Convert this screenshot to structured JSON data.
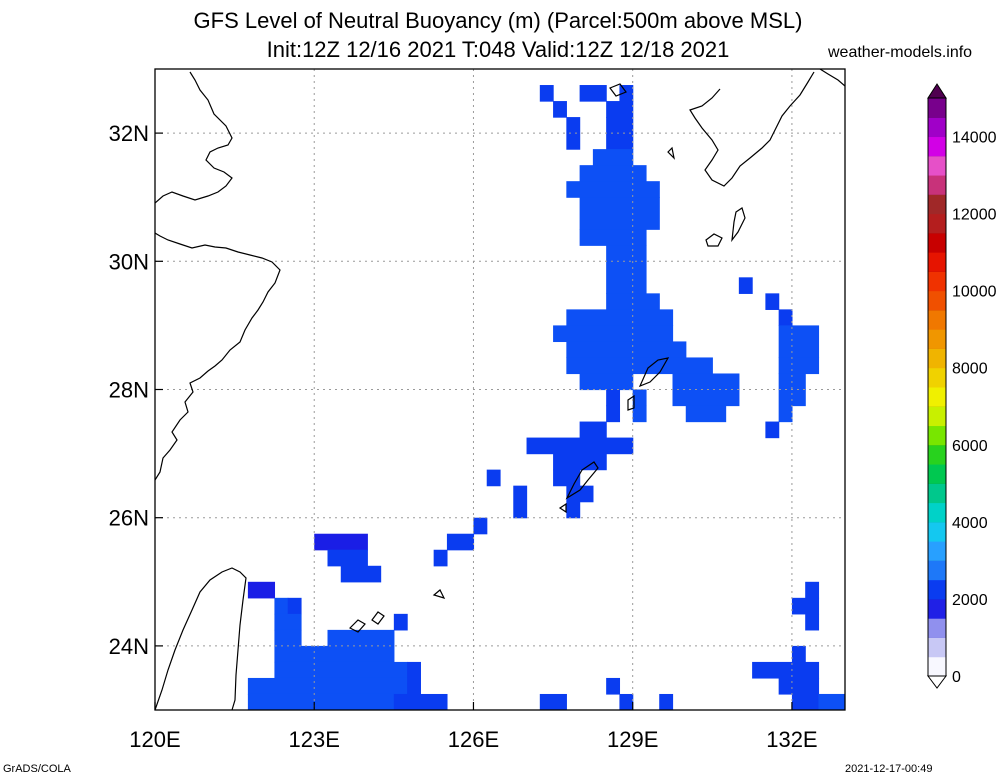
{
  "header": {
    "title_line1": "GFS Level of Neutral Buoyancy (m) (Parcel:500m above MSL)",
    "title_line2": "Init:12Z 12/16 2021 T:048 Valid:12Z 12/18 2021",
    "site": "weather-models.info"
  },
  "footer": {
    "left": "GrADS/COLA",
    "right": "2021-12-17-00:49"
  },
  "chart_data": {
    "type": "heatmap",
    "title": "GFS Level of Neutral Buoyancy (m) (Parcel:500m above MSL)",
    "subtitle": "Init:12Z 12/16 2021 T:048 Valid:12Z 12/18 2021",
    "x_unit": "degrees E",
    "y_unit": "degrees N",
    "xlim": [
      120,
      133
    ],
    "ylim": [
      23,
      33
    ],
    "xticks": [
      120,
      123,
      126,
      129,
      132
    ],
    "xtick_labels": [
      "120E",
      "123E",
      "126E",
      "129E",
      "132E"
    ],
    "yticks": [
      24,
      26,
      28,
      30,
      32
    ],
    "ytick_labels": [
      "24N",
      "26N",
      "28N",
      "30N",
      "32N"
    ],
    "grid": true,
    "grid_resolution_deg": 0.25,
    "colorbar": {
      "min": 0,
      "max": 15000,
      "tick_values": [
        0,
        2000,
        4000,
        6000,
        8000,
        10000,
        12000,
        14000
      ],
      "tick_labels": [
        "0",
        "2000",
        "4000",
        "6000",
        "8000",
        "10000",
        "12000",
        "14000"
      ],
      "stops": [
        {
          "v": 0,
          "c": "#f8f8ff"
        },
        {
          "v": 500,
          "c": "#c8c8f5"
        },
        {
          "v": 1000,
          "c": "#9090ee"
        },
        {
          "v": 1500,
          "c": "#2020e6"
        },
        {
          "v": 2000,
          "c": "#0a3cf0"
        },
        {
          "v": 2500,
          "c": "#1e78f8"
        },
        {
          "v": 3000,
          "c": "#28a0ff"
        },
        {
          "v": 3500,
          "c": "#14c8f0"
        },
        {
          "v": 4000,
          "c": "#00d2c8"
        },
        {
          "v": 4500,
          "c": "#00c88c"
        },
        {
          "v": 5000,
          "c": "#00c850"
        },
        {
          "v": 5500,
          "c": "#28d21e"
        },
        {
          "v": 6000,
          "c": "#78e600"
        },
        {
          "v": 6500,
          "c": "#c8f000"
        },
        {
          "v": 7000,
          "c": "#f0f000"
        },
        {
          "v": 7500,
          "c": "#f0d200"
        },
        {
          "v": 8000,
          "c": "#f0b400"
        },
        {
          "v": 8500,
          "c": "#f09600"
        },
        {
          "v": 9000,
          "c": "#f07800"
        },
        {
          "v": 9500,
          "c": "#f05000"
        },
        {
          "v": 10000,
          "c": "#f03200"
        },
        {
          "v": 10500,
          "c": "#e61400"
        },
        {
          "v": 11000,
          "c": "#c80000"
        },
        {
          "v": 11500,
          "c": "#b41e1e"
        },
        {
          "v": 12000,
          "c": "#a02828"
        },
        {
          "v": 12500,
          "c": "#c8327a"
        },
        {
          "v": 13000,
          "c": "#e650c8"
        },
        {
          "v": 13500,
          "c": "#d200e6"
        },
        {
          "v": 14000,
          "c": "#a000c8"
        },
        {
          "v": 14500,
          "c": "#78008c"
        },
        {
          "v": 15000,
          "c": "#500050"
        }
      ]
    },
    "cell_colors": {
      "a": "#0a3cf0",
      "b": "#0d50f5",
      "c": "#1a1ee6"
    },
    "cells": [
      [
        127.25,
        32.75,
        127.5,
        32.5,
        "a"
      ],
      [
        128.0,
        32.75,
        128.5,
        32.5,
        "a"
      ],
      [
        128.75,
        32.75,
        129.0,
        32.5,
        "a"
      ],
      [
        127.5,
        32.5,
        127.75,
        32.25,
        "a"
      ],
      [
        128.5,
        32.5,
        129.0,
        32.25,
        "a"
      ],
      [
        127.75,
        32.25,
        128.0,
        31.75,
        "a"
      ],
      [
        128.5,
        32.25,
        129.0,
        31.75,
        "a"
      ],
      [
        128.25,
        31.75,
        129.0,
        31.5,
        "b"
      ],
      [
        128.0,
        31.5,
        129.25,
        31.25,
        "b"
      ],
      [
        127.75,
        31.25,
        129.5,
        31.0,
        "b"
      ],
      [
        128.0,
        31.0,
        129.5,
        30.5,
        "b"
      ],
      [
        128.0,
        30.5,
        129.25,
        30.25,
        "b"
      ],
      [
        128.5,
        30.25,
        129.25,
        29.5,
        "b"
      ],
      [
        128.5,
        29.5,
        129.5,
        29.25,
        "b"
      ],
      [
        127.75,
        29.25,
        129.75,
        29.0,
        "b"
      ],
      [
        127.5,
        29.0,
        129.75,
        28.75,
        "b"
      ],
      [
        127.75,
        28.75,
        130.0,
        28.5,
        "b"
      ],
      [
        127.75,
        28.5,
        130.5,
        28.25,
        "b"
      ],
      [
        128.0,
        28.25,
        129.0,
        28.0,
        "b"
      ],
      [
        129.75,
        28.25,
        131.0,
        28.0,
        "b"
      ],
      [
        128.75,
        28.0,
        128.5,
        27.75,
        "a"
      ],
      [
        129.0,
        28.0,
        129.25,
        27.75,
        "b"
      ],
      [
        129.75,
        28.0,
        131.0,
        27.75,
        "b"
      ],
      [
        128.75,
        27.75,
        128.5,
        27.5,
        "a"
      ],
      [
        129.0,
        27.75,
        129.25,
        27.5,
        "b"
      ],
      [
        130.0,
        27.75,
        130.75,
        27.5,
        "b"
      ],
      [
        128.0,
        27.5,
        128.5,
        27.25,
        "a"
      ],
      [
        127.0,
        27.25,
        129.0,
        27.0,
        "a"
      ],
      [
        127.5,
        27.0,
        128.5,
        26.75,
        "a"
      ],
      [
        126.25,
        26.75,
        126.5,
        26.5,
        "a"
      ],
      [
        127.5,
        26.75,
        128.0,
        26.5,
        "a"
      ],
      [
        126.75,
        26.5,
        127.0,
        26.0,
        "a"
      ],
      [
        127.75,
        26.5,
        128.25,
        26.25,
        "a"
      ],
      [
        127.75,
        26.25,
        128.0,
        26.0,
        "a"
      ],
      [
        131.0,
        29.75,
        131.25,
        29.5,
        "a"
      ],
      [
        131.5,
        29.5,
        131.75,
        29.25,
        "a"
      ],
      [
        131.75,
        29.25,
        132.0,
        29.0,
        "a"
      ],
      [
        131.75,
        29.0,
        132.5,
        28.5,
        "b"
      ],
      [
        131.75,
        28.5,
        132.5,
        28.25,
        "b"
      ],
      [
        132.0,
        28.25,
        132.25,
        27.75,
        "b"
      ],
      [
        131.75,
        28.25,
        132.0,
        28.0,
        "b"
      ],
      [
        131.75,
        28.0,
        132.0,
        27.5,
        "b"
      ],
      [
        131.5,
        27.5,
        131.75,
        27.25,
        "a"
      ],
      [
        126.0,
        26.0,
        126.25,
        25.75,
        "a"
      ],
      [
        125.5,
        25.75,
        126.0,
        25.5,
        "a"
      ],
      [
        123.0,
        25.75,
        124.0,
        25.5,
        "c"
      ],
      [
        123.25,
        25.5,
        124.0,
        25.25,
        "a"
      ],
      [
        125.25,
        25.5,
        125.5,
        25.25,
        "a"
      ],
      [
        123.5,
        25.25,
        124.25,
        25.0,
        "a"
      ],
      [
        121.75,
        25.0,
        122.25,
        24.75,
        "c"
      ],
      [
        122.25,
        24.75,
        122.5,
        24.5,
        "b"
      ],
      [
        122.5,
        24.75,
        122.75,
        24.5,
        "a"
      ],
      [
        124.5,
        24.5,
        124.75,
        24.25,
        "a"
      ],
      [
        122.25,
        24.5,
        122.75,
        24.25,
        "b"
      ],
      [
        122.25,
        24.25,
        122.75,
        24.0,
        "b"
      ],
      [
        123.25,
        24.25,
        124.5,
        24.0,
        "b"
      ],
      [
        122.25,
        24.0,
        124.5,
        23.75,
        "b"
      ],
      [
        122.25,
        23.75,
        124.75,
        23.5,
        "b"
      ],
      [
        124.75,
        23.75,
        125.0,
        23.5,
        "a"
      ],
      [
        121.75,
        23.5,
        124.75,
        23.25,
        "b"
      ],
      [
        124.75,
        23.5,
        125.0,
        23.25,
        "a"
      ],
      [
        121.75,
        23.25,
        124.5,
        23.0,
        "b"
      ],
      [
        124.5,
        23.25,
        125.5,
        23.0,
        "a"
      ],
      [
        127.25,
        23.25,
        127.75,
        23.0,
        "a"
      ],
      [
        128.75,
        23.25,
        129.0,
        23.0,
        "a"
      ],
      [
        129.5,
        23.25,
        129.75,
        23.0,
        "a"
      ],
      [
        128.5,
        23.5,
        128.75,
        23.25,
        "a"
      ],
      [
        132.0,
        24.75,
        132.5,
        24.5,
        "a"
      ],
      [
        132.25,
        25.0,
        132.5,
        24.75,
        "a"
      ],
      [
        132.25,
        24.5,
        132.5,
        24.25,
        "a"
      ],
      [
        132.0,
        24.0,
        132.25,
        23.75,
        "a"
      ],
      [
        131.25,
        23.75,
        132.5,
        23.5,
        "a"
      ],
      [
        131.75,
        23.5,
        132.5,
        23.25,
        "a"
      ],
      [
        132.0,
        23.25,
        133.0,
        23.0,
        "a"
      ],
      [
        132.5,
        23.25,
        133.0,
        23.0,
        "b"
      ]
    ],
    "outline_color": "#000000"
  }
}
